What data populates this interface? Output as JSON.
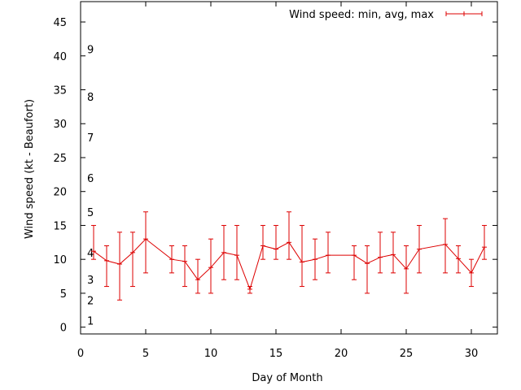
{
  "chart_data": {
    "type": "line",
    "title": "",
    "xlabel": "Day of Month",
    "ylabel": "Wind speed (kt - Beaufort)",
    "xlim": [
      0,
      32
    ],
    "ylim": [
      -1,
      48
    ],
    "x_ticks": [
      0,
      5,
      10,
      15,
      20,
      25,
      30
    ],
    "y_ticks": [
      0,
      5,
      10,
      15,
      20,
      25,
      30,
      35,
      40,
      45
    ],
    "grid": false,
    "legend_position": "top-right",
    "beaufort_scale": [
      {
        "label": "1",
        "y": 1
      },
      {
        "label": "2",
        "y": 4
      },
      {
        "label": "3",
        "y": 7
      },
      {
        "label": "4",
        "y": 11
      },
      {
        "label": "5",
        "y": 17
      },
      {
        "label": "6",
        "y": 22
      },
      {
        "label": "7",
        "y": 28
      },
      {
        "label": "8",
        "y": 34
      },
      {
        "label": "9",
        "y": 41
      }
    ],
    "series": [
      {
        "name": "Wind speed: min, avg, max",
        "color": "#dd0000",
        "points": [
          {
            "x": 1,
            "min": 10,
            "avg": 11.2,
            "max": 15
          },
          {
            "x": 2,
            "min": 6,
            "avg": 9.8,
            "max": 12
          },
          {
            "x": 3,
            "min": 4,
            "avg": 9.3,
            "max": 14
          },
          {
            "x": 4,
            "min": 6,
            "avg": 11,
            "max": 14
          },
          {
            "x": 5,
            "min": 8,
            "avg": 13,
            "max": 17
          },
          {
            "x": 7,
            "min": 8,
            "avg": 10,
            "max": 12
          },
          {
            "x": 8,
            "min": 6,
            "avg": 9.7,
            "max": 12
          },
          {
            "x": 9,
            "min": 5,
            "avg": 7,
            "max": 10
          },
          {
            "x": 10,
            "min": 5,
            "avg": 8.8,
            "max": 13
          },
          {
            "x": 11,
            "min": 7,
            "avg": 11,
            "max": 15
          },
          {
            "x": 12,
            "min": 7,
            "avg": 10.6,
            "max": 15
          },
          {
            "x": 13,
            "min": 5,
            "avg": 5.6,
            "max": 6
          },
          {
            "x": 14,
            "min": 10,
            "avg": 12,
            "max": 15
          },
          {
            "x": 15,
            "min": 10,
            "avg": 11.5,
            "max": 15
          },
          {
            "x": 16,
            "min": 10,
            "avg": 12.5,
            "max": 17
          },
          {
            "x": 17,
            "min": 6,
            "avg": 9.6,
            "max": 15
          },
          {
            "x": 18,
            "min": 7,
            "avg": 10,
            "max": 13
          },
          {
            "x": 19,
            "min": 8,
            "avg": 10.6,
            "max": 14
          },
          {
            "x": 21,
            "min": 7,
            "avg": 10.6,
            "max": 12
          },
          {
            "x": 22,
            "min": 5,
            "avg": 9.4,
            "max": 12
          },
          {
            "x": 23,
            "min": 8,
            "avg": 10.3,
            "max": 14
          },
          {
            "x": 24,
            "min": 8,
            "avg": 10.7,
            "max": 14
          },
          {
            "x": 25,
            "min": 5,
            "avg": 8.6,
            "max": 12
          },
          {
            "x": 26,
            "min": 8,
            "avg": 11.5,
            "max": 15
          },
          {
            "x": 28,
            "min": 8,
            "avg": 12.2,
            "max": 16
          },
          {
            "x": 29,
            "min": 8,
            "avg": 10.1,
            "max": 12
          },
          {
            "x": 30,
            "min": 6,
            "avg": 8,
            "max": 10
          },
          {
            "x": 31,
            "min": 10,
            "avg": 11.8,
            "max": 15
          }
        ]
      }
    ]
  }
}
